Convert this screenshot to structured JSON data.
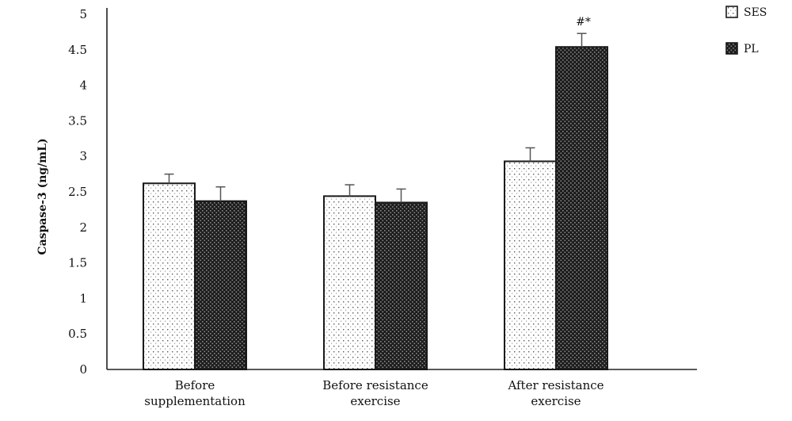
{
  "chart_data": {
    "type": "bar",
    "title": "",
    "xlabel": "",
    "ylabel": "Caspase-3 (ng/mL)",
    "ylim": [
      0,
      5
    ],
    "yticks": [
      "0",
      "0.5",
      "1",
      "1.5",
      "2",
      "2.5",
      "3",
      "3.5",
      "4",
      "4.5",
      "5"
    ],
    "categories": [
      [
        "Before",
        "supplementation"
      ],
      [
        "Before resistance",
        "exercise"
      ],
      [
        "After resistance",
        "exercise"
      ]
    ],
    "series": [
      {
        "name": "SES",
        "values": [
          2.62,
          2.44,
          2.93
        ],
        "errors": [
          0.13,
          0.16,
          0.19
        ],
        "color": "#ffffff"
      },
      {
        "name": "PL",
        "values": [
          2.37,
          2.35,
          4.54
        ],
        "errors": [
          0.2,
          0.19,
          0.19
        ],
        "color": "#2b2b2b"
      }
    ],
    "annotations": [
      {
        "category_index": 2,
        "series_index": 1,
        "text": "#*"
      }
    ],
    "legend_position": "top-right",
    "grid": false
  }
}
